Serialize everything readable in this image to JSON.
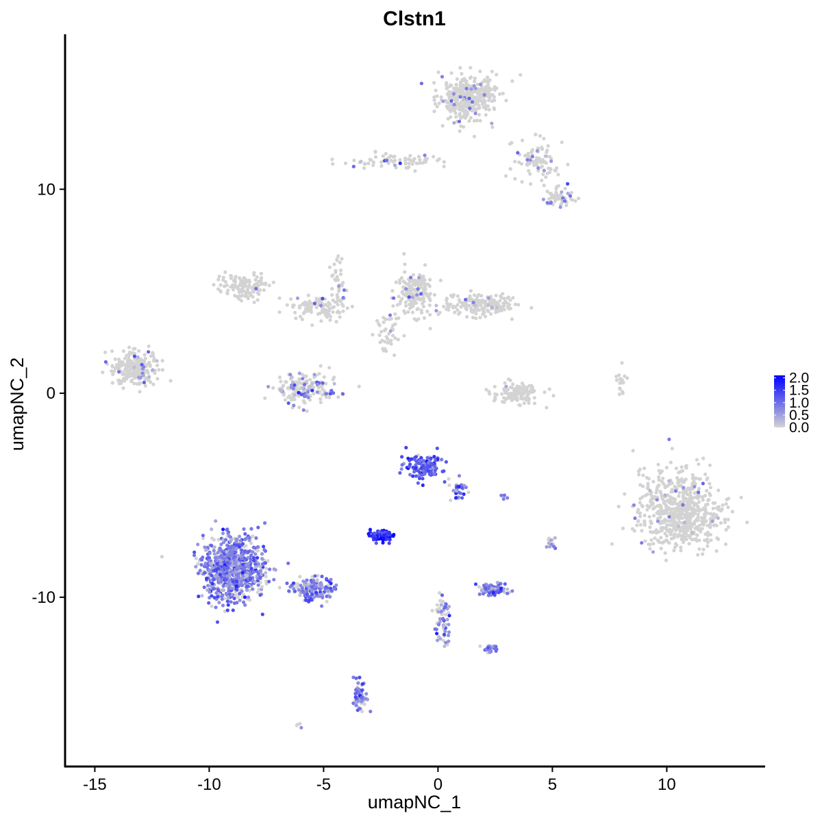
{
  "chart_data": {
    "type": "scatter",
    "title": "Clstn1",
    "xlabel": "umapNC_1",
    "ylabel": "umapNC_2",
    "xlim": [
      -16.3,
      14.3
    ],
    "ylim": [
      -18.3,
      17.6
    ],
    "x_ticks": [
      {
        "value": -15,
        "label": "-15"
      },
      {
        "value": -10,
        "label": "-10"
      },
      {
        "value": -5,
        "label": "-5"
      },
      {
        "value": 0,
        "label": "0"
      },
      {
        "value": 5,
        "label": "5"
      },
      {
        "value": 10,
        "label": "10"
      }
    ],
    "y_ticks": [
      {
        "value": -10,
        "label": "-10"
      },
      {
        "value": 0,
        "label": "0"
      },
      {
        "value": 10,
        "label": "10"
      }
    ],
    "grid": false,
    "legend": {
      "placement": "right",
      "type": "colorbar",
      "range": [
        0,
        2.1
      ],
      "low_color": "#d3d3d3",
      "high_color": "#0000ff",
      "ticks": [
        {
          "value": 0.0,
          "label": "0.0"
        },
        {
          "value": 0.5,
          "label": "0.5"
        },
        {
          "value": 1.0,
          "label": "1.0"
        },
        {
          "value": 1.5,
          "label": "1.5"
        },
        {
          "value": 2.0,
          "label": "2.0"
        }
      ]
    },
    "point_color_low": "#d3d3d3",
    "point_color_high": "#0000ff",
    "clusters": [
      {
        "center": [
          1.3,
          14.5
        ],
        "spread": [
          1.1,
          1.0
        ],
        "n": 360,
        "expr_frac": 0.06,
        "expr_mean": 0.7
      },
      {
        "center": [
          4.3,
          11.3
        ],
        "spread": [
          1.0,
          0.9
        ],
        "n": 90,
        "expr_frac": 0.1,
        "expr_mean": 0.8
      },
      {
        "center": [
          5.3,
          9.6
        ],
        "spread": [
          0.6,
          0.5
        ],
        "n": 60,
        "expr_frac": 0.2,
        "expr_mean": 0.8
      },
      {
        "center": [
          -1.8,
          11.4
        ],
        "spread": [
          1.8,
          0.35
        ],
        "n": 70,
        "expr_frac": 0.1,
        "expr_mean": 0.8
      },
      {
        "center": [
          -8.5,
          5.2
        ],
        "spread": [
          1.0,
          0.6
        ],
        "n": 120,
        "expr_frac": 0.03,
        "expr_mean": 0.6
      },
      {
        "center": [
          -5.2,
          4.2
        ],
        "spread": [
          1.2,
          0.5
        ],
        "n": 100,
        "expr_frac": 0.05,
        "expr_mean": 0.7
      },
      {
        "center": [
          -4.4,
          5.6
        ],
        "spread": [
          0.3,
          1.2
        ],
        "n": 40,
        "expr_frac": 0.05,
        "expr_mean": 0.7
      },
      {
        "center": [
          -1.0,
          5.0
        ],
        "spread": [
          0.7,
          1.0
        ],
        "n": 180,
        "expr_frac": 0.04,
        "expr_mean": 0.6
      },
      {
        "center": [
          1.8,
          4.3
        ],
        "spread": [
          1.4,
          0.5
        ],
        "n": 180,
        "expr_frac": 0.02,
        "expr_mean": 0.6
      },
      {
        "center": [
          -2.2,
          3.0
        ],
        "spread": [
          0.5,
          0.8
        ],
        "n": 40,
        "expr_frac": 0.03,
        "expr_mean": 0.6
      },
      {
        "center": [
          -13.2,
          1.2
        ],
        "spread": [
          1.0,
          0.8
        ],
        "n": 220,
        "expr_frac": 0.06,
        "expr_mean": 0.7
      },
      {
        "center": [
          -5.8,
          0.2
        ],
        "spread": [
          1.2,
          0.7
        ],
        "n": 180,
        "expr_frac": 0.25,
        "expr_mean": 0.7
      },
      {
        "center": [
          3.5,
          0.0
        ],
        "spread": [
          1.0,
          0.5
        ],
        "n": 120,
        "expr_frac": 0.01,
        "expr_mean": 0.5
      },
      {
        "center": [
          8.0,
          0.5
        ],
        "spread": [
          0.2,
          0.5
        ],
        "n": 20,
        "expr_frac": 0.0,
        "expr_mean": 0.5
      },
      {
        "center": [
          10.6,
          -5.8
        ],
        "spread": [
          1.6,
          1.7
        ],
        "n": 650,
        "expr_frac": 0.03,
        "expr_mean": 0.7
      },
      {
        "center": [
          -0.6,
          -3.6
        ],
        "spread": [
          0.7,
          0.6
        ],
        "n": 150,
        "expr_frac": 0.9,
        "expr_mean": 1.2
      },
      {
        "center": [
          0.9,
          -4.8
        ],
        "spread": [
          0.3,
          0.5
        ],
        "n": 30,
        "expr_frac": 0.8,
        "expr_mean": 1.0
      },
      {
        "center": [
          -2.5,
          -7.0
        ],
        "spread": [
          0.4,
          0.25
        ],
        "n": 90,
        "expr_frac": 1.0,
        "expr_mean": 1.6
      },
      {
        "center": [
          -8.9,
          -8.6
        ],
        "spread": [
          1.2,
          1.4
        ],
        "n": 850,
        "expr_frac": 0.75,
        "expr_mean": 0.9
      },
      {
        "center": [
          -5.4,
          -9.6
        ],
        "spread": [
          0.9,
          0.5
        ],
        "n": 160,
        "expr_frac": 0.7,
        "expr_mean": 0.9
      },
      {
        "center": [
          2.4,
          -9.6
        ],
        "spread": [
          0.6,
          0.3
        ],
        "n": 90,
        "expr_frac": 0.85,
        "expr_mean": 0.9
      },
      {
        "center": [
          0.2,
          -11.0
        ],
        "spread": [
          0.3,
          1.2
        ],
        "n": 60,
        "expr_frac": 0.6,
        "expr_mean": 0.8
      },
      {
        "center": [
          2.3,
          -12.5
        ],
        "spread": [
          0.3,
          0.2
        ],
        "n": 30,
        "expr_frac": 0.7,
        "expr_mean": 0.9
      },
      {
        "center": [
          -3.4,
          -14.8
        ],
        "spread": [
          0.3,
          0.7
        ],
        "n": 60,
        "expr_frac": 0.7,
        "expr_mean": 0.9
      },
      {
        "center": [
          5.0,
          -7.3
        ],
        "spread": [
          0.2,
          0.3
        ],
        "n": 12,
        "expr_frac": 0.8,
        "expr_mean": 0.8
      },
      {
        "center": [
          2.9,
          -5.1
        ],
        "spread": [
          0.15,
          0.1
        ],
        "n": 5,
        "expr_frac": 0.8,
        "expr_mean": 0.8
      },
      {
        "center": [
          -6.1,
          -16.3
        ],
        "spread": [
          0.1,
          0.1
        ],
        "n": 4,
        "expr_frac": 0.8,
        "expr_mean": 0.8
      }
    ]
  }
}
